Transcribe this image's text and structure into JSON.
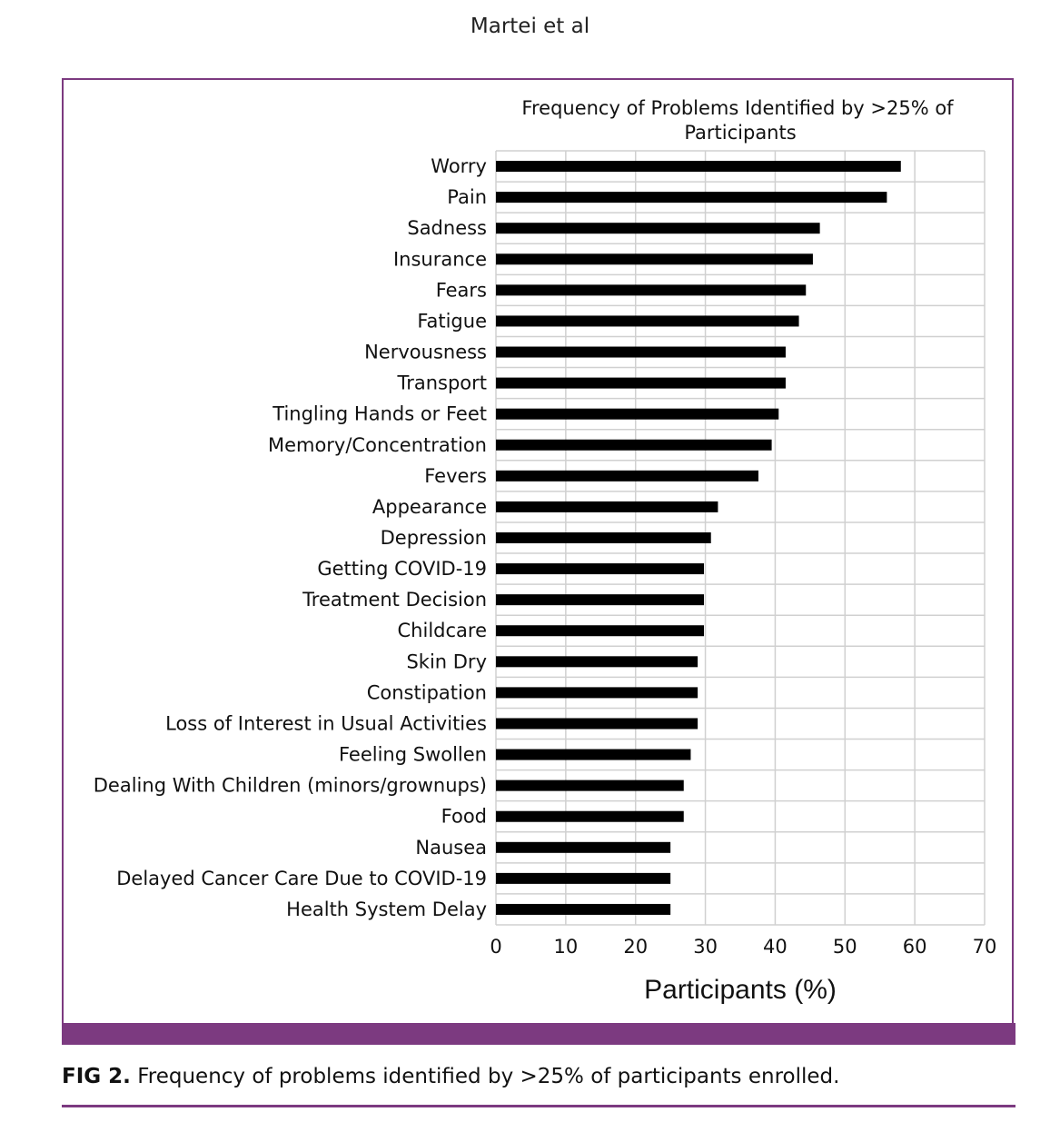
{
  "header": {
    "running_head": "Martei et al"
  },
  "caption": {
    "label": "FIG 2.",
    "text": "Frequency of problems identified by >25% of participants enrolled."
  },
  "colors": {
    "accent": "#7c3a80",
    "bar": "#000000",
    "grid": "#d0d0d0"
  },
  "chart_data": {
    "type": "bar",
    "orientation": "horizontal",
    "title_lines": [
      "Frequency of Problems Identified by >25% of",
      "Participants"
    ],
    "xlabel": "Participants (%)",
    "ylabel": "",
    "xlim": [
      0,
      70
    ],
    "xticks": [
      0,
      10,
      20,
      30,
      40,
      50,
      60,
      70
    ],
    "grid": true,
    "categories": [
      "Worry",
      "Pain",
      "Sadness",
      "Insurance",
      "Fears",
      "Fatigue",
      "Nervousness",
      "Transport",
      "Tingling Hands or Feet",
      "Memory/Concentration",
      "Fevers",
      "Appearance",
      "Depression",
      "Getting COVID-19",
      "Treatment Decision",
      "Childcare",
      "Skin Dry",
      "Constipation",
      "Loss of Interest in Usual Activities",
      "Feeling Swollen",
      "Dealing With Children (minors/grownups)",
      "Food",
      "Nausea",
      "Delayed Cancer Care Due to COVID-19",
      "Health System Delay"
    ],
    "values": [
      58,
      56,
      46.4,
      45.4,
      44.4,
      43.4,
      41.5,
      41.5,
      40.5,
      39.5,
      37.6,
      31.8,
      30.8,
      29.8,
      29.8,
      29.8,
      28.9,
      28.9,
      28.9,
      27.9,
      26.9,
      26.9,
      25,
      25,
      25
    ]
  }
}
